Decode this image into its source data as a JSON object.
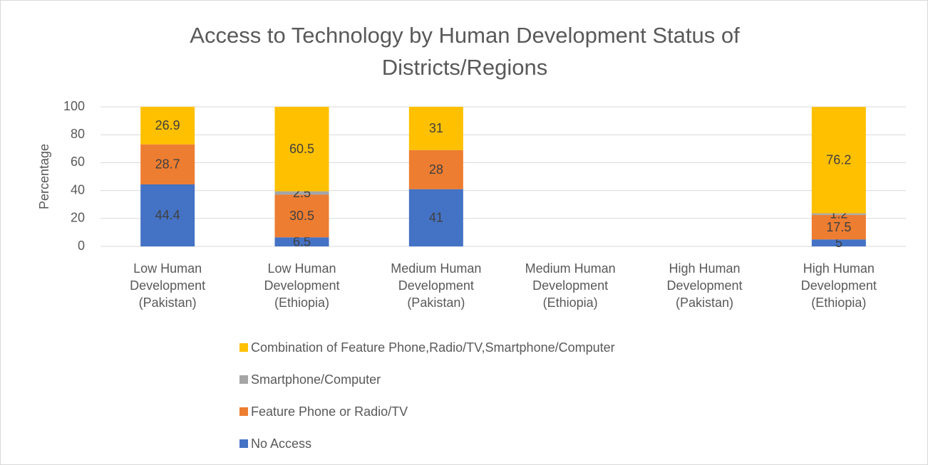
{
  "chart_data": {
    "type": "stacked_bar",
    "title": "Access to Technology by Human Development Status of Districts/Regions",
    "y_label": "Percentage",
    "categories": [
      "Low Human Development (Pakistan)",
      "Low Human Development (Ethiopia)",
      "Medium Human Development (Pakistan)",
      "Medium Human Development (Ethiopia)",
      "High Human Development (Pakistan)",
      "High Human Development (Ethiopia)"
    ],
    "series": [
      {
        "name": "No Access",
        "color": "#4472c4",
        "values": [
          44.4,
          6.5,
          41,
          null,
          null,
          5
        ]
      },
      {
        "name": "Feature Phone or Radio/TV",
        "color": "#ed7d31",
        "values": [
          28.7,
          30.5,
          28,
          null,
          null,
          17.5
        ]
      },
      {
        "name": "Smartphone/Computer",
        "color": "#a5a5a5",
        "values": [
          null,
          2.5,
          null,
          null,
          null,
          1.2
        ]
      },
      {
        "name": "Combination of Feature Phone,Radio/TV,Smartphone/Computer",
        "color": "#ffc000",
        "values": [
          26.9,
          60.5,
          31,
          null,
          null,
          76.2
        ]
      }
    ],
    "ylim": [
      0,
      100
    ],
    "yticks": [
      0,
      20,
      40,
      60,
      80,
      100
    ],
    "grid": true,
    "legend": "bottom"
  }
}
